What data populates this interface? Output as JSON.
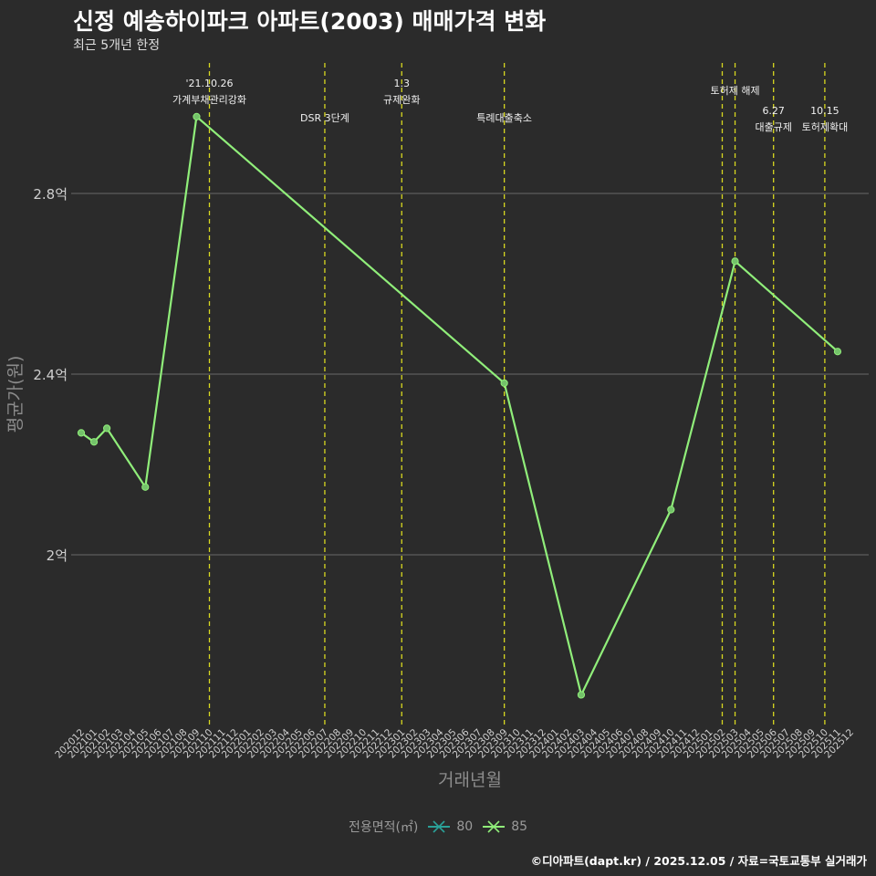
{
  "title": "신정 예송하이파크 아파트(2003) 매매가격 변화",
  "subtitle": "최근 5개년 한정",
  "caption": "©디아파트(dapt.kr) / 2025.12.05 / 자료=국토교통부 실거래가",
  "colors": {
    "background": "#2b2b2b",
    "grid": "#6a6a6a",
    "series_80": "#2aa198",
    "series_85": "#90ee7a",
    "event_line": "#d8d820",
    "tick": "#cfcfcf",
    "axis_title": "#8c8c8c"
  },
  "chart_data": {
    "type": "line",
    "title": "신정 예송하이파크 아파트(2003) 매매가격 변화",
    "subtitle": "최근 5개년 한정",
    "xlabel": "거래년월",
    "ylabel": "평균가(원)",
    "categories": [
      "202012",
      "202101",
      "202102",
      "202103",
      "202104",
      "202105",
      "202106",
      "202107",
      "202108",
      "202109",
      "202110",
      "202111",
      "202112",
      "202201",
      "202202",
      "202203",
      "202204",
      "202205",
      "202206",
      "202207",
      "202208",
      "202209",
      "202210",
      "202211",
      "202212",
      "202301",
      "202302",
      "202303",
      "202304",
      "202305",
      "202306",
      "202307",
      "202308",
      "202309",
      "202310",
      "202311",
      "202312",
      "202401",
      "202402",
      "202403",
      "202404",
      "202405",
      "202406",
      "202407",
      "202408",
      "202409",
      "202410",
      "202411",
      "202412",
      "202501",
      "202502",
      "202503",
      "202504",
      "202505",
      "202506",
      "202507",
      "202508",
      "202509",
      "202510",
      "202511",
      "202512"
    ],
    "yticks": [
      {
        "value": 2.0,
        "label": "2억"
      },
      {
        "value": 2.4,
        "label": "2.4억"
      },
      {
        "value": 2.8,
        "label": "2.8억"
      }
    ],
    "ylim": [
      1.64,
      3.04
    ],
    "unit": "억",
    "legend": {
      "title": "전용면적(㎡)",
      "position": "bottom",
      "entries": [
        "80",
        "85"
      ]
    },
    "series": [
      {
        "name": "80",
        "points": []
      },
      {
        "name": "85",
        "points": [
          {
            "x": "202012",
            "y": 2.27
          },
          {
            "x": "202101",
            "y": 2.25
          },
          {
            "x": "202102",
            "y": 2.28
          },
          {
            "x": "202105",
            "y": 2.15
          },
          {
            "x": "202109",
            "y": 2.97
          },
          {
            "x": "202309",
            "y": 2.38
          },
          {
            "x": "202403",
            "y": 1.69
          },
          {
            "x": "202410",
            "y": 2.1
          },
          {
            "x": "202503",
            "y": 2.65
          },
          {
            "x": "202511",
            "y": 2.45
          }
        ]
      }
    ],
    "events": [
      {
        "x": "202110",
        "lines": [
          "'21.10.26",
          "가계부채관리강화"
        ],
        "row": 0
      },
      {
        "x": "202207",
        "lines": [
          "DSR 3단계"
        ],
        "row": 2
      },
      {
        "x": "202301",
        "lines": [
          "1.3",
          "규제완화"
        ],
        "row": 0
      },
      {
        "x": "202309",
        "lines": [
          "특례대출축소"
        ],
        "row": 2
      },
      {
        "x": "202502",
        "lines": [],
        "row": 0
      },
      {
        "x": "202503",
        "lines": [
          "토허제 해제"
        ],
        "row": 1
      },
      {
        "x": "202506",
        "lines": [
          "6.27",
          "대출규제"
        ],
        "row": 3
      },
      {
        "x": "202510",
        "lines": [
          "10.15",
          "토허제확대"
        ],
        "row": 3
      }
    ]
  }
}
